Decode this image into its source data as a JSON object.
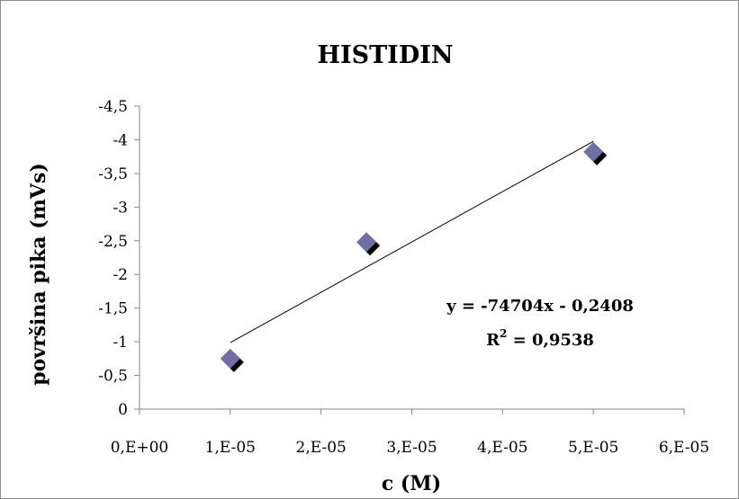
{
  "chart_data": {
    "type": "scatter",
    "title": "HISTIDIN",
    "xlabel": "c (M)",
    "ylabel": "površina pika (mVs)",
    "xlim": [
      0,
      6e-05
    ],
    "ylim": [
      0,
      -4.5
    ],
    "x_ticks": [
      {
        "value": 0,
        "label": "0,E+00"
      },
      {
        "value": 1e-05,
        "label": "1,E-05"
      },
      {
        "value": 2e-05,
        "label": "2,E-05"
      },
      {
        "value": 3e-05,
        "label": "3,E-05"
      },
      {
        "value": 4e-05,
        "label": "4,E-05"
      },
      {
        "value": 5e-05,
        "label": "5,E-05"
      },
      {
        "value": 6e-05,
        "label": "6,E-05"
      }
    ],
    "y_ticks": [
      {
        "value": 0,
        "label": "0"
      },
      {
        "value": -0.5,
        "label": "-0,5"
      },
      {
        "value": -1,
        "label": "-1"
      },
      {
        "value": -1.5,
        "label": "-1,5"
      },
      {
        "value": -2,
        "label": "-2"
      },
      {
        "value": -2.5,
        "label": "-2,5"
      },
      {
        "value": -3,
        "label": "-3"
      },
      {
        "value": -3.5,
        "label": "-3,5"
      },
      {
        "value": -4,
        "label": "-4"
      },
      {
        "value": -4.5,
        "label": "-4,5"
      }
    ],
    "series": [
      {
        "points": [
          {
            "x": 1e-05,
            "y": -0.75
          },
          {
            "x": 2.5e-05,
            "y": -2.48
          },
          {
            "x": 5e-05,
            "y": -3.82
          }
        ],
        "color": "#6f6fa6"
      }
    ],
    "trendline": {
      "slope": -74704,
      "intercept": -0.2408,
      "x_range": [
        1e-05,
        5e-05
      ],
      "equation": "y = -74704x - 0,2408",
      "r2_prefix": "R",
      "r2_exp": "2",
      "r2_value": " = 0,9538"
    },
    "grid": false,
    "legend": "none"
  }
}
